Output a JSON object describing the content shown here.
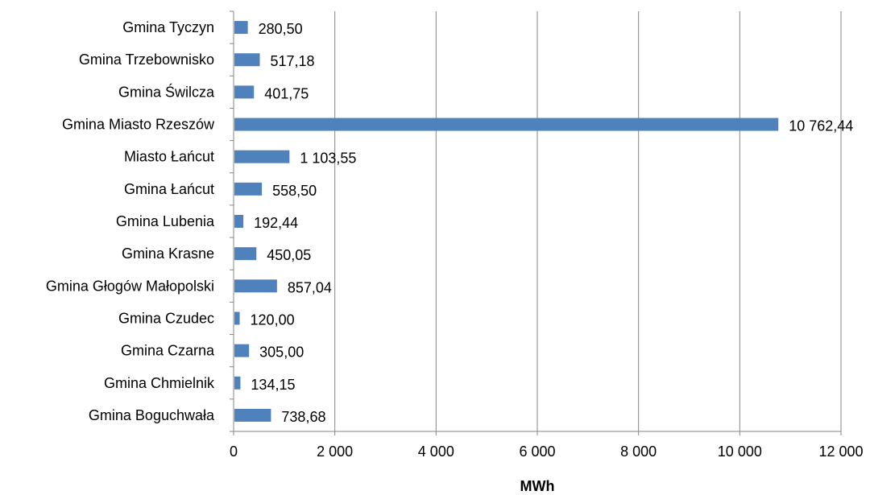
{
  "chart_data": {
    "type": "bar",
    "orientation": "horizontal",
    "categories": [
      "Gmina Tyczyn",
      "Gmina Trzebownisko",
      "Gmina Świlcza",
      "Gmina Miasto Rzeszów",
      "Miasto Łańcut",
      "Gmina Łańcut",
      "Gmina Lubenia",
      "Gmina Krasne",
      "Gmina Głogów Małopolski",
      "Gmina Czudec",
      "Gmina Czarna",
      "Gmina Chmielnik",
      "Gmina Boguchwała"
    ],
    "values": [
      280.5,
      517.18,
      401.75,
      10762.44,
      1103.55,
      558.5,
      192.44,
      450.05,
      857.04,
      120.0,
      305.0,
      134.15,
      738.68
    ],
    "value_labels": [
      "280,50",
      "517,18",
      "401,75",
      "10 762,44",
      "1 103,55",
      "558,50",
      "192,44",
      "450,05",
      "857,04",
      "120,00",
      "305,00",
      "134,15",
      "738,68"
    ],
    "xlim": [
      0,
      12000
    ],
    "xticks": [
      0,
      2000,
      4000,
      6000,
      8000,
      10000,
      12000
    ],
    "xtick_labels": [
      "0",
      "2 000",
      "4 000",
      "6 000",
      "8 000",
      "10 000",
      "12 000"
    ],
    "xlabel": "MWh",
    "ylabel": "",
    "title": "",
    "grid": "vertical",
    "bar_color": "#4f81bd",
    "grid_color": "#868686"
  }
}
